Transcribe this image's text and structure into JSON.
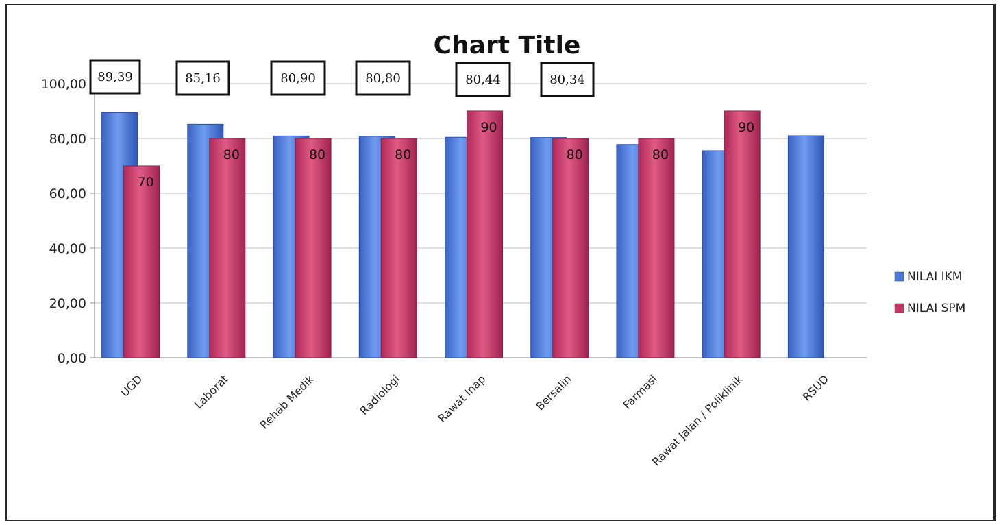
{
  "chart_data": {
    "type": "bar",
    "title": "Chart Title",
    "categories": [
      "UGD",
      "Laborat",
      "Rehab Medik",
      "Radiologi",
      "Rawat Inap",
      "Bersalin",
      "Farmasi",
      "Rawat Jalan / Poliklinik",
      "RSUD"
    ],
    "series": [
      {
        "name": "NILAI IKM",
        "color": "#4a78d8",
        "values": [
          89.39,
          85.16,
          80.9,
          80.8,
          80.44,
          80.34,
          77.8,
          75.5,
          81.0
        ]
      },
      {
        "name": "NILAI SPM",
        "color": "#c8386a",
        "values": [
          70,
          80,
          80,
          80,
          90,
          80,
          80,
          90,
          null
        ]
      }
    ],
    "spm_data_labels": [
      "70",
      "80",
      "80",
      "80",
      "90",
      "80",
      "80",
      "90",
      ""
    ],
    "ikm_callouts": [
      "89,39",
      "85,16",
      "80,90",
      "80,80",
      "80,44",
      "80,34"
    ],
    "y_ticks": [
      "0,00",
      "20,00",
      "40,00",
      "60,00",
      "80,00",
      "100,00"
    ],
    "ylim": [
      0,
      100
    ],
    "grid": true,
    "legend_position": "right"
  }
}
